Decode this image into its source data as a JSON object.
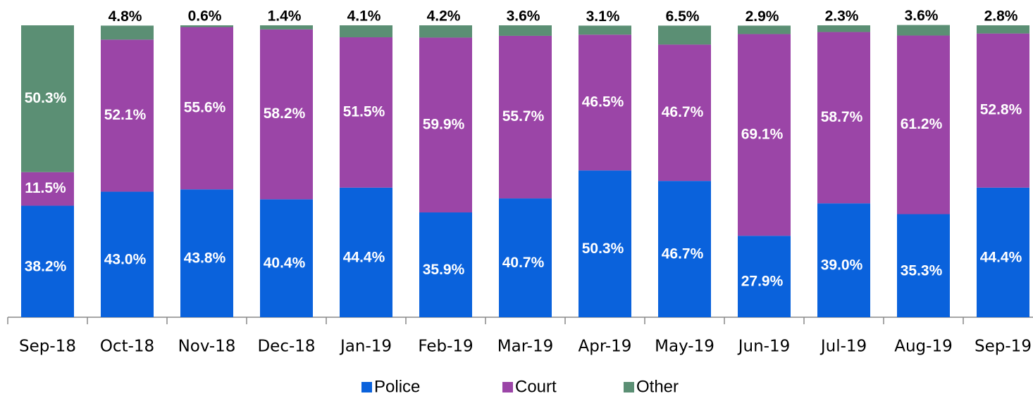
{
  "chart_data": {
    "type": "stacked_bar",
    "categories": [
      "Sep-18",
      "Oct-18",
      "Nov-18",
      "Dec-18",
      "Jan-19",
      "Feb-19",
      "Mar-19",
      "Apr-19",
      "May-19",
      "Jun-19",
      "Jul-19",
      "Aug-19",
      "Sep-19"
    ],
    "ylim": [
      0,
      100
    ],
    "series": [
      {
        "name": "Police",
        "color": "#0a62dc",
        "values": [
          38.2,
          43.0,
          43.8,
          40.4,
          44.4,
          35.9,
          40.7,
          50.3,
          46.7,
          27.9,
          39.0,
          35.3,
          44.4
        ],
        "value_labels": [
          "38.2%",
          "43.0%",
          "43.8%",
          "40.4%",
          "44.4%",
          "35.9%",
          "40.7%",
          "50.3%",
          "46.7%",
          "27.9%",
          "39.0%",
          "35.3%",
          "44.4%"
        ]
      },
      {
        "name": "Court",
        "color": "#9b45a7",
        "values": [
          11.5,
          52.1,
          55.6,
          58.2,
          51.5,
          59.9,
          55.7,
          46.5,
          46.7,
          69.1,
          58.7,
          61.2,
          52.8
        ],
        "value_labels": [
          "11.5%",
          "52.1%",
          "55.6%",
          "58.2%",
          "51.5%",
          "59.9%",
          "55.7%",
          "46.5%",
          "46.7%",
          "69.1%",
          "58.7%",
          "61.2%",
          "52.8%"
        ]
      },
      {
        "name": "Other",
        "color": "#5b8f74",
        "values": [
          50.3,
          4.8,
          0.6,
          1.4,
          4.1,
          4.2,
          3.6,
          3.1,
          6.5,
          2.9,
          2.3,
          3.6,
          2.8
        ],
        "value_labels": [
          "50.3%",
          "4.8%",
          "0.6%",
          "1.4%",
          "4.1%",
          "4.2%",
          "3.6%",
          "3.1%",
          "6.5%",
          "2.9%",
          "2.3%",
          "3.6%",
          "2.8%"
        ]
      }
    ]
  }
}
